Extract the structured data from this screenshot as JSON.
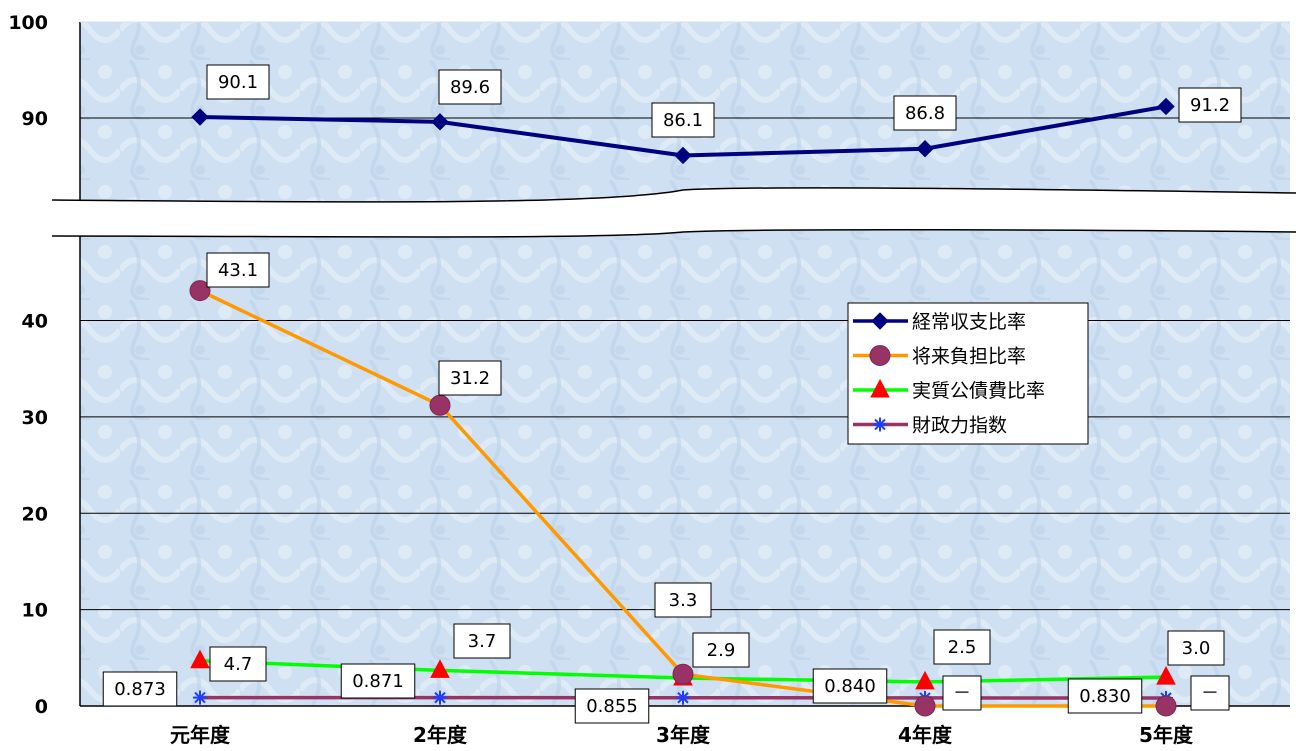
{
  "chart_data": {
    "type": "line",
    "categories": [
      "元年度",
      "2年度",
      "3年度",
      "4年度",
      "5年度"
    ],
    "broken_axis": true,
    "ylim_lower": [
      0,
      48
    ],
    "ylim_upper": [
      80,
      100
    ],
    "y_ticks_lower": [
      "0",
      "10",
      "20",
      "30",
      "40"
    ],
    "y_ticks_upper": [
      "90",
      "100"
    ],
    "grid": true,
    "legend_position": "right",
    "series": [
      {
        "name": "経常収支比率",
        "color": "#000080",
        "marker": "diamond",
        "values": [
          90.1,
          89.6,
          86.1,
          86.8,
          91.2
        ],
        "labels": [
          "90.1",
          "89.6",
          "86.1",
          "86.8",
          "91.2"
        ]
      },
      {
        "name": "将来負担比率",
        "color": "#FF9900",
        "marker": "circle",
        "values": [
          43.1,
          31.2,
          3.3,
          0,
          0
        ],
        "labels": [
          "43.1",
          "31.2",
          "3.3",
          "－",
          "－"
        ]
      },
      {
        "name": "実質公債費比率",
        "color": "#00FF00",
        "marker": "triangle",
        "values": [
          4.7,
          3.7,
          2.9,
          2.5,
          3.0
        ],
        "labels": [
          "4.7",
          "3.7",
          "2.9",
          "2.5",
          "3.0"
        ]
      },
      {
        "name": "財政力指数",
        "color": "#993366",
        "marker": "star",
        "values": [
          0.873,
          0.871,
          0.855,
          0.84,
          0.83
        ],
        "labels": [
          "0.873",
          "0.871",
          "0.855",
          "0.840",
          "0.830"
        ]
      }
    ]
  }
}
